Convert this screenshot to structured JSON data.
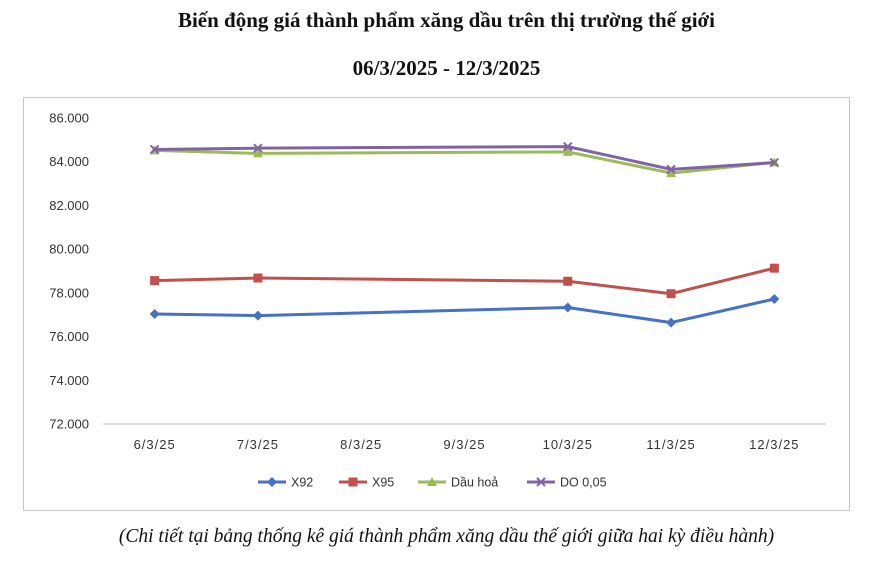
{
  "chart_data": {
    "type": "line",
    "title": "Biến động giá thành phẩm xăng dầu trên thị trường thế giới",
    "subtitle": "06/3/2025 - 12/3/2025",
    "categories": [
      "6/3/25",
      "7/3/25",
      "8/3/25",
      "9/3/25",
      "10/3/25",
      "11/3/25",
      "12/3/25"
    ],
    "ylim": [
      72000,
      86000
    ],
    "yticks": [
      72000,
      74000,
      76000,
      78000,
      80000,
      82000,
      84000,
      86000
    ],
    "ytick_labels": [
      "72.000",
      "74.000",
      "76.000",
      "78.000",
      "80.000",
      "82.000",
      "84.000",
      "86.000"
    ],
    "grid": false,
    "legend_position": "bottom",
    "series": [
      {
        "name": "X92",
        "color": "#4472C4",
        "marker": "diamond",
        "points": [
          {
            "x": "6/3/25",
            "y": 77030
          },
          {
            "x": "7/3/25",
            "y": 76960
          },
          {
            "x": "10/3/25",
            "y": 77330
          },
          {
            "x": "11/3/25",
            "y": 76640
          },
          {
            "x": "12/3/25",
            "y": 77720
          }
        ]
      },
      {
        "name": "X95",
        "color": "#C0504D",
        "marker": "square",
        "points": [
          {
            "x": "6/3/25",
            "y": 78560
          },
          {
            "x": "7/3/25",
            "y": 78680
          },
          {
            "x": "10/3/25",
            "y": 78530
          },
          {
            "x": "11/3/25",
            "y": 77960
          },
          {
            "x": "12/3/25",
            "y": 79130
          }
        ]
      },
      {
        "name": "Dầu hoả",
        "color": "#9BBB59",
        "marker": "triangle",
        "points": [
          {
            "x": "6/3/25",
            "y": 84520
          },
          {
            "x": "7/3/25",
            "y": 84380
          },
          {
            "x": "10/3/25",
            "y": 84450
          },
          {
            "x": "11/3/25",
            "y": 83480
          },
          {
            "x": "12/3/25",
            "y": 83970
          }
        ]
      },
      {
        "name": "DO 0,05",
        "color": "#8064A2",
        "marker": "x",
        "points": [
          {
            "x": "6/3/25",
            "y": 84560
          },
          {
            "x": "7/3/25",
            "y": 84620
          },
          {
            "x": "10/3/25",
            "y": 84690
          },
          {
            "x": "11/3/25",
            "y": 83650
          },
          {
            "x": "12/3/25",
            "y": 83960
          }
        ]
      }
    ]
  },
  "caption": "(Chi tiết tại bảng thống kê giá thành phẩm xăng dầu thế giới giữa hai kỳ điều hành)"
}
